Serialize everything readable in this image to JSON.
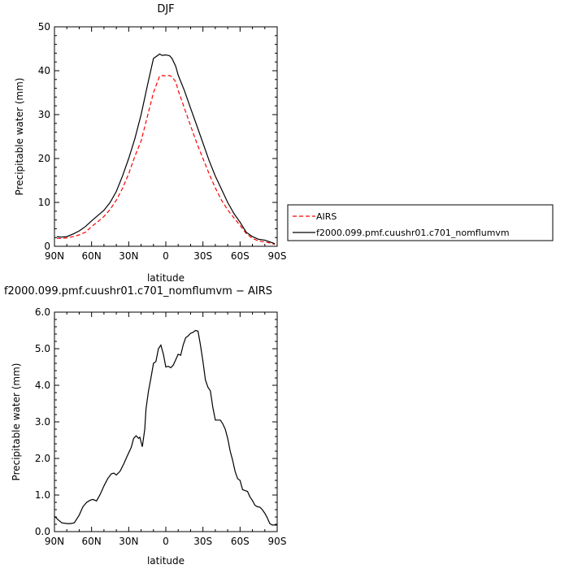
{
  "chart_data": [
    {
      "type": "line",
      "title": "DJF",
      "xlabel": "latitude",
      "ylabel": "Precipitable water  (mm)",
      "xlim": [
        -90,
        90
      ],
      "ylim": [
        0,
        50
      ],
      "xticks": [
        -90,
        -60,
        -30,
        0,
        30,
        60,
        90
      ],
      "xtick_labels": [
        "90N",
        "60N",
        "30N",
        "0",
        "30S",
        "60S",
        "90S"
      ],
      "yticks": [
        0,
        10,
        20,
        30,
        40,
        50
      ],
      "ytick_labels": [
        "0",
        "10",
        "20",
        "30",
        "40",
        "50"
      ],
      "legend_position": "right",
      "series": [
        {
          "name": "AIRS",
          "color": "#ff0000",
          "dash": "dashed",
          "x": [
            -88,
            -85,
            -80,
            -75,
            -70,
            -65,
            -60,
            -55,
            -50,
            -45,
            -40,
            -35,
            -30,
            -25,
            -20,
            -15,
            -10,
            -5,
            -2,
            0,
            3,
            5,
            8,
            10,
            15,
            20,
            25,
            30,
            35,
            40,
            45,
            50,
            55,
            60,
            65,
            70,
            75,
            80,
            85,
            88
          ],
          "y": [
            1.8,
            1.8,
            1.9,
            2.2,
            2.6,
            3.2,
            4.5,
            5.6,
            6.8,
            8.4,
            10.5,
            13.2,
            16.5,
            20.5,
            24.0,
            29.5,
            35.0,
            38.8,
            38.9,
            38.8,
            38.9,
            38.6,
            37.5,
            35.5,
            31.5,
            27.5,
            23.5,
            20.0,
            16.5,
            13.3,
            10.5,
            8.3,
            6.5,
            4.8,
            2.9,
            1.8,
            1.2,
            1.0,
            0.7,
            0.4
          ]
        },
        {
          "name": "f2000.099.pmf.cuushr01.c701_nomflumvm",
          "color": "#000000",
          "dash": "solid",
          "x": [
            -88,
            -85,
            -80,
            -75,
            -70,
            -65,
            -60,
            -55,
            -50,
            -45,
            -40,
            -35,
            -30,
            -25,
            -20,
            -15,
            -10,
            -5,
            -3,
            0,
            3,
            5,
            8,
            10,
            15,
            20,
            25,
            30,
            35,
            40,
            45,
            50,
            55,
            60,
            65,
            70,
            75,
            80,
            85,
            88
          ],
          "y": [
            2.2,
            2.1,
            2.2,
            2.8,
            3.5,
            4.5,
            5.8,
            7.0,
            8.2,
            10.0,
            12.5,
            16.0,
            20.0,
            24.5,
            30.0,
            36.5,
            42.8,
            43.8,
            43.5,
            43.6,
            43.4,
            42.8,
            41.0,
            39.0,
            35.5,
            31.5,
            27.5,
            23.5,
            19.5,
            16.0,
            13.0,
            10.0,
            7.5,
            5.5,
            3.2,
            2.2,
            1.6,
            1.4,
            0.9,
            0.6
          ]
        }
      ]
    },
    {
      "type": "line",
      "title": "f2000.099.pmf.cuushr01.c701_nomflumvm  −  AIRS",
      "xlabel": "latitude",
      "ylabel": "Precipitable water  (mm)",
      "xlim": [
        -90,
        90
      ],
      "ylim": [
        0,
        6
      ],
      "xticks": [
        -90,
        -60,
        -30,
        0,
        30,
        60,
        90
      ],
      "xtick_labels": [
        "90N",
        "60N",
        "30N",
        "0",
        "30S",
        "60S",
        "90S"
      ],
      "yticks": [
        0,
        1,
        2,
        3,
        4,
        5,
        6
      ],
      "ytick_labels": [
        "0.0",
        "1.0",
        "2.0",
        "3.0",
        "4.0",
        "5.0",
        "6.0"
      ],
      "series": [
        {
          "color": "#000000",
          "dash": "solid",
          "x": [
            -90,
            -87,
            -84,
            -80,
            -77,
            -74,
            -70,
            -67,
            -64,
            -61,
            -59,
            -56,
            -53,
            -50,
            -47,
            -44,
            -42,
            -40,
            -37,
            -34,
            -31,
            -28,
            -26,
            -24,
            -22,
            -21,
            -19,
            -17,
            -16,
            -14,
            -12,
            -10,
            -8,
            -6,
            -4,
            -2,
            0,
            2,
            4,
            6,
            8,
            10,
            12,
            14,
            16,
            18,
            20,
            22,
            24,
            26,
            28,
            30,
            32,
            34,
            36,
            38,
            40,
            42,
            44,
            46,
            48,
            50,
            52,
            54,
            56,
            58,
            60,
            62,
            64,
            66,
            68,
            70,
            72,
            74,
            76,
            78,
            80,
            82,
            84,
            86,
            88,
            90
          ],
          "y": [
            0.42,
            0.32,
            0.24,
            0.22,
            0.22,
            0.24,
            0.45,
            0.68,
            0.8,
            0.86,
            0.88,
            0.84,
            1.02,
            1.25,
            1.45,
            1.58,
            1.6,
            1.55,
            1.65,
            1.85,
            2.08,
            2.3,
            2.55,
            2.62,
            2.55,
            2.58,
            2.32,
            2.8,
            3.35,
            3.85,
            4.2,
            4.6,
            4.65,
            5.0,
            5.1,
            4.85,
            4.5,
            4.52,
            4.48,
            4.55,
            4.7,
            4.85,
            4.82,
            5.1,
            5.3,
            5.35,
            5.42,
            5.45,
            5.5,
            5.48,
            5.1,
            4.65,
            4.15,
            3.95,
            3.85,
            3.4,
            3.05,
            3.05,
            3.05,
            2.95,
            2.8,
            2.55,
            2.2,
            1.95,
            1.65,
            1.45,
            1.4,
            1.15,
            1.12,
            1.1,
            0.95,
            0.85,
            0.72,
            0.68,
            0.67,
            0.6,
            0.5,
            0.38,
            0.22,
            0.18,
            0.18,
            0.18
          ]
        }
      ]
    }
  ]
}
